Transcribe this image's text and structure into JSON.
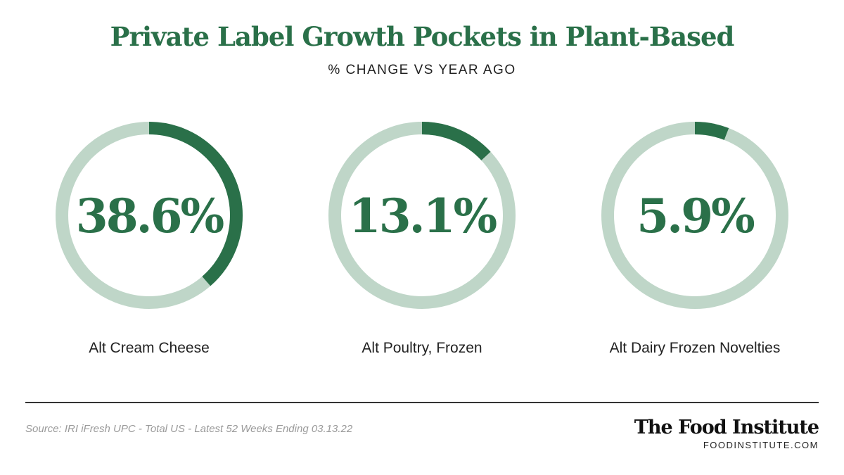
{
  "header": {
    "title": "Private Label Growth Pockets in Plant-Based",
    "subtitle": "% CHANGE VS YEAR AGO"
  },
  "colors": {
    "accent": "#2a7049",
    "track": "#bfd6c8",
    "label": "#222222"
  },
  "chart_data": [
    {
      "type": "pie",
      "category": "Alt Cream Cheese",
      "value": 38.6,
      "value_label": "38.6%"
    },
    {
      "type": "pie",
      "category": "Alt Poultry, Frozen",
      "value": 13.1,
      "value_label": "13.1%"
    },
    {
      "type": "pie",
      "category": "Alt Dairy Frozen Novelties",
      "value": 5.9,
      "value_label": "5.9%"
    }
  ],
  "footer": {
    "source": "Source: IRI iFresh UPC - Total US - Latest 52 Weeks Ending 03.13.22",
    "brand_name": "The Food Institute",
    "brand_url": "FOODINSTITUTE.COM"
  }
}
